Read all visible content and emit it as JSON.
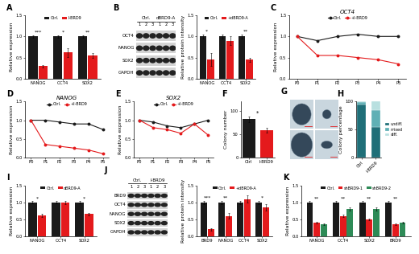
{
  "chart_data": [
    {
      "panel": "A",
      "type": "bar",
      "ylabel": "Relative expression",
      "categories": [
        "NANOG",
        "OCT4",
        "SOX2"
      ],
      "series": [
        {
          "name": "Ctrl.",
          "color": "#1a1a1a",
          "values": [
            1,
            1,
            1
          ],
          "errors": [
            0.03,
            0.03,
            0.03
          ]
        },
        {
          "name": "I-BRD9",
          "color": "#e41a1c",
          "values": [
            0.3,
            0.62,
            0.55
          ],
          "errors": [
            0.03,
            0.1,
            0.05
          ]
        }
      ],
      "significance": [
        "***",
        "*",
        "**"
      ],
      "ylim": [
        0,
        1.5
      ],
      "yticks": [
        {
          "value": 0,
          "label": "0.0"
        },
        {
          "value": 0.5,
          "label": "0.5"
        },
        {
          "value": 1,
          "label": "1.0"
        },
        {
          "value": 1.5,
          "label": "1.5"
        }
      ],
      "legend": "upper center"
    },
    {
      "type": "bar",
      "ylabel": "Relative protein intensity",
      "categories": [
        "NANOG",
        "OCT4",
        "SOX2"
      ],
      "series": [
        {
          "name": "Ctrl.",
          "color": "#1a1a1a",
          "values": [
            1,
            1,
            1
          ],
          "errors": [
            0.05,
            0.05,
            0.05
          ]
        },
        {
          "name": "+dBRD9-A",
          "color": "#e41a1c",
          "values": [
            0.45,
            0.9,
            0.45
          ],
          "errors": [
            0.15,
            0.1,
            0.05
          ]
        }
      ],
      "significance": [
        "*",
        "",
        "**"
      ],
      "ylim": [
        0,
        1.5
      ],
      "yticks": [
        {
          "value": 0,
          "label": "0.0"
        },
        {
          "value": 0.5,
          "label": "0.5"
        },
        {
          "value": 1,
          "label": "1.0"
        },
        {
          "value": 1.5,
          "label": "1.5"
        }
      ],
      "legend": "upper center"
    },
    {
      "panel": "C",
      "type": "line",
      "title": "OCT4",
      "ylabel": "Relative expression",
      "categories": [
        "P0",
        "P1",
        "P2",
        "P3",
        "P4",
        "P5"
      ],
      "series": [
        {
          "name": "Ctrl.",
          "color": "#1a1a1a",
          "marker": "o",
          "line_style": "solid",
          "values": [
            1,
            0.9,
            1.0,
            1.05,
            1.0,
            1.0
          ]
        },
        {
          "name": "+I-BRD9",
          "color": "#e41a1c",
          "marker": "o",
          "line_style": "solid",
          "values": [
            1,
            0.55,
            0.55,
            0.5,
            0.45,
            0.35
          ]
        }
      ],
      "ylim": [
        0,
        1.5
      ],
      "yticks": [
        {
          "value": 0,
          "label": "0.0"
        },
        {
          "value": 0.5,
          "label": "0.5"
        },
        {
          "value": 1,
          "label": "1.0"
        },
        {
          "value": 1.5,
          "label": "1.5"
        }
      ],
      "legend": "upper center"
    },
    {
      "panel": "D",
      "type": "line",
      "title": "NANOG",
      "ylabel": "Relative expression",
      "categories": [
        "P0",
        "P1",
        "P2",
        "P3",
        "P4",
        "P5"
      ],
      "series": [
        {
          "name": "Ctrl.",
          "color": "#1a1a1a",
          "marker": "o",
          "line_style": "solid",
          "values": [
            1,
            1.0,
            0.95,
            0.9,
            0.9,
            0.75
          ]
        },
        {
          "name": "+I-BRD9",
          "color": "#e41a1c",
          "marker": "o",
          "line_style": "solid",
          "values": [
            1,
            0.35,
            0.3,
            0.25,
            0.2,
            0.1
          ]
        }
      ],
      "ylim": [
        0,
        1.5
      ],
      "yticks": [
        {
          "value": 0,
          "label": "0.0"
        },
        {
          "value": 0.5,
          "label": "0.5"
        },
        {
          "value": 1,
          "label": "1.0"
        },
        {
          "value": 1.5,
          "label": "1.5"
        }
      ],
      "legend": "upper center"
    },
    {
      "panel": "E",
      "type": "line",
      "title": "SOX2",
      "ylabel": "Relative expression",
      "categories": [
        "P0",
        "P1",
        "P2",
        "P3",
        "P4",
        "P5"
      ],
      "series": [
        {
          "name": "Ctrl.",
          "color": "#1a1a1a",
          "marker": "o",
          "line_style": "solid",
          "values": [
            1,
            0.95,
            0.85,
            0.8,
            0.9,
            1.0
          ]
        },
        {
          "name": "+I-BRD9",
          "color": "#e41a1c",
          "marker": "o",
          "line_style": "solid",
          "values": [
            1,
            0.8,
            0.75,
            0.65,
            0.9,
            0.6
          ]
        }
      ],
      "ylim": [
        0,
        1.5
      ],
      "yticks": [
        {
          "value": 0,
          "label": "0.0"
        },
        {
          "value": 0.5,
          "label": "0.5"
        },
        {
          "value": 1,
          "label": "1.0"
        },
        {
          "value": 1.5,
          "label": "1.5"
        }
      ],
      "legend": "upper center"
    },
    {
      "panel": "F",
      "type": "bar",
      "ylabel": "Colony number",
      "categories": [
        "Ctrl",
        "I-BRD9"
      ],
      "series": [
        {
          "name": "Colony number",
          "colors": [
            "#1a1a1a",
            "#e41a1c"
          ],
          "values": [
            82,
            58
          ],
          "errors": [
            6,
            5
          ]
        }
      ],
      "significance": "*",
      "ylim": [
        0,
        120
      ],
      "yticks": [
        0,
        50,
        100
      ]
    },
    {
      "panel": "H",
      "type": "bar",
      "stacked": true,
      "ylabel": "Colony percentage",
      "categories": [
        "Ctrl",
        "I-BRD9"
      ],
      "series": [
        {
          "name": "undiff.",
          "color": "#1f6f78",
          "values": [
            95,
            55
          ]
        },
        {
          "name": "mixed",
          "color": "#5fb0b5",
          "values": [
            4,
            30
          ]
        },
        {
          "name": "diff.",
          "color": "#b9e0e0",
          "values": [
            1,
            15
          ]
        }
      ],
      "ylim": [
        0,
        100
      ],
      "yticks": [
        0,
        50,
        100
      ],
      "legend": "right"
    },
    {
      "panel": "I",
      "type": "bar",
      "ylabel": "Relative expression",
      "categories": [
        "NANOG",
        "OCT4",
        "SOX2"
      ],
      "series": [
        {
          "name": "Ctrl.",
          "color": "#1a1a1a",
          "values": [
            1,
            1,
            1
          ],
          "errors": [
            0.04,
            0.04,
            0.04
          ]
        },
        {
          "name": "dBRD9-A",
          "color": "#e41a1c",
          "values": [
            0.62,
            1.0,
            0.65
          ],
          "errors": [
            0.05,
            0.05,
            0.03
          ]
        }
      ],
      "significance": [
        "*",
        "",
        "*"
      ],
      "ylim": [
        0,
        1.5
      ],
      "yticks": [
        {
          "value": 0,
          "label": "0.0"
        },
        {
          "value": 0.5,
          "label": "0.5"
        },
        {
          "value": 1,
          "label": "1.0"
        },
        {
          "value": 1.5,
          "label": "1.5"
        }
      ],
      "legend": "upper center"
    },
    {
      "type": "bar",
      "ylabel": "Relative protein intensity",
      "categories": [
        "BRD9",
        "NANOG",
        "OCT4",
        "SOX2"
      ],
      "series": [
        {
          "name": "Ctrl.",
          "color": "#1a1a1a",
          "values": [
            1,
            1,
            1,
            1
          ],
          "errors": [
            0.05,
            0.05,
            0.05,
            0.05
          ]
        },
        {
          "name": "+dBRD9-A",
          "color": "#e41a1c",
          "values": [
            0.2,
            0.6,
            1.1,
            0.85
          ],
          "errors": [
            0.03,
            0.08,
            0.1,
            0.1
          ]
        }
      ],
      "significance": [
        "***",
        "**",
        "",
        "*"
      ],
      "ylim": [
        0,
        1.5
      ],
      "yticks": [
        {
          "value": 0,
          "label": "0.0"
        },
        {
          "value": 0.5,
          "label": "0.5"
        },
        {
          "value": 1,
          "label": "1.0"
        },
        {
          "value": 1.5,
          "label": "1.5"
        }
      ],
      "legend": "upper center"
    },
    {
      "panel": "K",
      "type": "bar",
      "ylabel": "Relative expression",
      "categories": [
        "NANOG",
        "OCT4",
        "SOX2",
        "BRD9"
      ],
      "series": [
        {
          "name": "Ctrl.",
          "color": "#1a1a1a",
          "values": [
            1,
            1,
            1,
            1
          ],
          "errors": [
            0.03,
            0.03,
            0.03,
            0.03
          ]
        },
        {
          "name": "shBRD9-1",
          "color": "#e41a1c",
          "values": [
            0.4,
            0.6,
            0.5,
            0.35
          ],
          "errors": [
            0.03,
            0.04,
            0.03,
            0.03
          ]
        },
        {
          "name": "shBRD9-2",
          "color": "#2e8b57",
          "values": [
            0.35,
            0.8,
            0.8,
            0.4
          ],
          "errors": [
            0.03,
            0.04,
            0.04,
            0.03
          ]
        }
      ],
      "significance": [
        "**",
        "**",
        "**",
        "**"
      ],
      "ylim": [
        0,
        1.5
      ],
      "yticks": [
        {
          "value": 0,
          "label": "0.0"
        },
        {
          "value": 0.5,
          "label": "0.5"
        },
        {
          "value": 1,
          "label": "1.0"
        },
        {
          "value": 1.5,
          "label": "1.5"
        }
      ],
      "legend": "upper center"
    }
  ],
  "blots": [
    {
      "panel": "B",
      "lane_groups": [
        {
          "name": "Ctrl.",
          "lanes": [
            "1",
            "2",
            "3"
          ]
        },
        {
          "name": "dBRD9-A",
          "lanes": [
            "1",
            "2",
            "3"
          ]
        }
      ],
      "rows": [
        "OCT4",
        "NANOG",
        "SOX2",
        "GAPDH"
      ]
    },
    {
      "panel": "J",
      "lane_groups": [
        {
          "name": "Ctrl.",
          "lanes": [
            "1",
            "2",
            "3"
          ]
        },
        {
          "name": "I-BRD9",
          "lanes": [
            "1",
            "2",
            "3"
          ]
        }
      ],
      "rows": [
        "BRD9",
        "OCT4",
        "NANOG",
        "SOX2",
        "GAPDH"
      ]
    }
  ],
  "images": {
    "panel": "G"
  }
}
